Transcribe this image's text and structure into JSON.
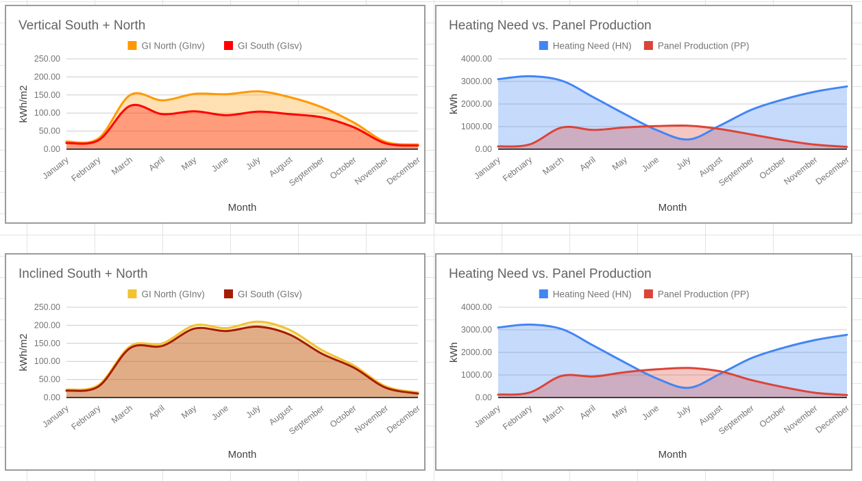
{
  "app": {
    "kind": "spreadsheet-embedded-charts",
    "sheet_gridline_color": "#e2e2e2",
    "chart_border_color": "#9a9a9a"
  },
  "chart_data": [
    {
      "type": "area",
      "title": "Vertical South + North",
      "xlabel": "Month",
      "ylabel": "kWh/m2",
      "ylim": [
        0,
        250
      ],
      "ytick_step": 50,
      "ytick_decimals": 2,
      "grid": true,
      "legend_position": "top",
      "categories": [
        "January",
        "February",
        "March",
        "April",
        "May",
        "June",
        "July",
        "August",
        "September",
        "October",
        "November",
        "December"
      ],
      "series": [
        {
          "name": "GI North (GInv)",
          "color": "#ff9900",
          "values": [
            21,
            30,
            150,
            135,
            153,
            152,
            160,
            144,
            116,
            73,
            20,
            13
          ]
        },
        {
          "name": "GI South (GIsv)",
          "color": "#ff0000",
          "values": [
            17,
            25,
            120,
            97,
            105,
            94,
            104,
            97,
            88,
            60,
            16,
            10
          ]
        }
      ]
    },
    {
      "type": "area",
      "title": "Heating Need vs. Panel Production",
      "xlabel": "Month",
      "ylabel": "kWh",
      "ylim": [
        0,
        4000
      ],
      "ytick_step": 1000,
      "ytick_decimals": 2,
      "grid": true,
      "legend_position": "top",
      "categories": [
        "January",
        "February",
        "March",
        "April",
        "May",
        "June",
        "July",
        "August",
        "September",
        "October",
        "November",
        "December"
      ],
      "series": [
        {
          "name": "Heating Need (HN)",
          "color": "#4285f4",
          "values": [
            3100,
            3230,
            3030,
            2300,
            1550,
            850,
            430,
            1050,
            1750,
            2200,
            2550,
            2780
          ]
        },
        {
          "name": "Panel Production (PP)",
          "color": "#db4437",
          "values": [
            120,
            210,
            960,
            850,
            960,
            1020,
            1040,
            890,
            650,
            400,
            200,
            100
          ]
        }
      ]
    },
    {
      "type": "area",
      "title": "Inclined South + North",
      "xlabel": "Month",
      "ylabel": "kWh/m2",
      "ylim": [
        0,
        250
      ],
      "ytick_step": 50,
      "ytick_decimals": 2,
      "grid": true,
      "legend_position": "top",
      "categories": [
        "January",
        "February",
        "March",
        "April",
        "May",
        "June",
        "July",
        "August",
        "September",
        "October",
        "November",
        "December"
      ],
      "series": [
        {
          "name": "GI North (GInv)",
          "color": "#f1c232",
          "values": [
            22,
            35,
            142,
            150,
            200,
            192,
            210,
            187,
            131,
            88,
            31,
            14
          ]
        },
        {
          "name": "GI South (GIsv)",
          "color": "#a61c00",
          "values": [
            19,
            31,
            137,
            143,
            191,
            184,
            196,
            174,
            121,
            82,
            27,
            11
          ]
        }
      ]
    },
    {
      "type": "area",
      "title": "Heating Need vs. Panel Production",
      "xlabel": "Month",
      "ylabel": "kWh",
      "ylim": [
        0,
        4000
      ],
      "ytick_step": 1000,
      "ytick_decimals": 2,
      "grid": true,
      "legend_position": "top",
      "categories": [
        "January",
        "February",
        "March",
        "April",
        "May",
        "June",
        "July",
        "August",
        "September",
        "October",
        "November",
        "December"
      ],
      "series": [
        {
          "name": "Heating Need (HN)",
          "color": "#4285f4",
          "values": [
            3100,
            3230,
            3030,
            2300,
            1550,
            850,
            430,
            1050,
            1750,
            2200,
            2550,
            2780
          ]
        },
        {
          "name": "Panel Production (PP)",
          "color": "#db4437",
          "values": [
            130,
            220,
            960,
            930,
            1120,
            1250,
            1310,
            1160,
            770,
            460,
            210,
            110
          ]
        }
      ]
    }
  ],
  "style": {
    "title_color": "#636363",
    "tick_label_color": "#757575",
    "axis_title_color": "#424242",
    "gridline_color": "#cccccc",
    "baseline_color": "#3c3c3c",
    "area_opacity": 0.3
  }
}
